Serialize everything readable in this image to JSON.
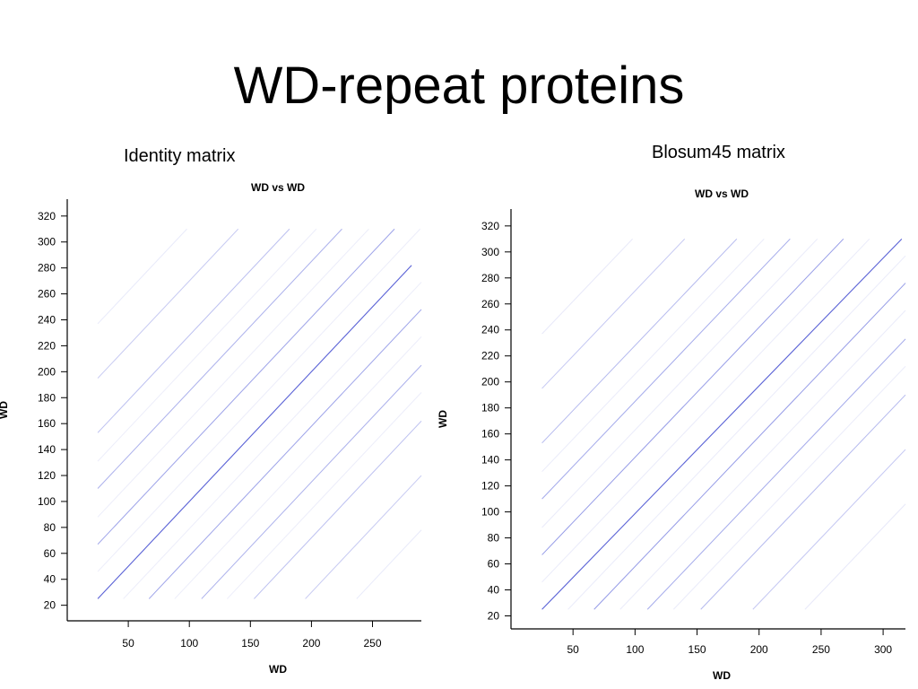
{
  "slide": {
    "title": "WD-repeat proteins",
    "captions": [
      "Identity matrix",
      "Blosum45 matrix"
    ]
  },
  "colors": {
    "main_diagonal": "#5a62d6",
    "repeat_diagonals": "#8f96e6",
    "noise": "#c9ccf2"
  },
  "chart_data": [
    {
      "type": "scatter",
      "title": "WD vs WD",
      "xlabel": "WD",
      "ylabel": "WD",
      "xlim": [
        0,
        290
      ],
      "ylim": [
        8,
        333
      ],
      "xticks": [
        50,
        100,
        150,
        200,
        250
      ],
      "yticks": [
        20,
        40,
        60,
        80,
        100,
        120,
        140,
        160,
        180,
        200,
        220,
        240,
        260,
        280,
        300,
        320
      ],
      "data_extent": {
        "x": [
          25,
          290
        ],
        "y": [
          25,
          310
        ]
      },
      "series": [
        {
          "role": "main",
          "x": [
            25,
            282
          ],
          "y": [
            25,
            282
          ],
          "intensity": 1.0
        },
        {
          "role": "off-diagonal",
          "offset": 42,
          "intensity": 0.45
        },
        {
          "role": "off-diagonal",
          "offset": -42,
          "intensity": 0.45
        },
        {
          "role": "off-diagonal",
          "offset": 85,
          "intensity": 0.35
        },
        {
          "role": "off-diagonal",
          "offset": -85,
          "intensity": 0.35
        },
        {
          "role": "off-diagonal",
          "offset": 128,
          "intensity": 0.25
        },
        {
          "role": "off-diagonal",
          "offset": -128,
          "intensity": 0.25
        },
        {
          "role": "off-diagonal",
          "offset": 170,
          "intensity": 0.18
        },
        {
          "role": "off-diagonal",
          "offset": -170,
          "intensity": 0.18
        },
        {
          "role": "off-diagonal",
          "offset": 212,
          "intensity": 0.12
        },
        {
          "role": "off-diagonal",
          "offset": -212,
          "intensity": 0.12
        },
        {
          "role": "off-diagonal",
          "offset": 21,
          "intensity": 0.08
        },
        {
          "role": "off-diagonal",
          "offset": -21,
          "intensity": 0.08
        },
        {
          "role": "off-diagonal",
          "offset": 63,
          "intensity": 0.08
        },
        {
          "role": "off-diagonal",
          "offset": -63,
          "intensity": 0.08
        },
        {
          "role": "off-diagonal",
          "offset": 106,
          "intensity": 0.08
        },
        {
          "role": "off-diagonal",
          "offset": -106,
          "intensity": 0.08
        }
      ]
    },
    {
      "type": "scatter",
      "title": "WD vs WD",
      "xlabel": "WD",
      "ylabel": "WD",
      "xlim": [
        0,
        318
      ],
      "ylim": [
        10,
        333
      ],
      "xticks": [
        50,
        100,
        150,
        200,
        250,
        300
      ],
      "yticks": [
        20,
        40,
        60,
        80,
        100,
        120,
        140,
        160,
        180,
        200,
        220,
        240,
        260,
        280,
        300,
        320
      ],
      "data_extent": {
        "x": [
          25,
          318
        ],
        "y": [
          25,
          310
        ]
      },
      "series": [
        {
          "role": "main",
          "x": [
            25,
            315
          ],
          "y": [
            25,
            310
          ],
          "intensity": 1.0
        },
        {
          "role": "off-diagonal",
          "offset": 42,
          "intensity": 0.5
        },
        {
          "role": "off-diagonal",
          "offset": -42,
          "intensity": 0.5
        },
        {
          "role": "off-diagonal",
          "offset": 85,
          "intensity": 0.4
        },
        {
          "role": "off-diagonal",
          "offset": -85,
          "intensity": 0.4
        },
        {
          "role": "off-diagonal",
          "offset": 128,
          "intensity": 0.3
        },
        {
          "role": "off-diagonal",
          "offset": -128,
          "intensity": 0.3
        },
        {
          "role": "off-diagonal",
          "offset": 170,
          "intensity": 0.2
        },
        {
          "role": "off-diagonal",
          "offset": -170,
          "intensity": 0.2
        },
        {
          "role": "off-diagonal",
          "offset": 212,
          "intensity": 0.14
        },
        {
          "role": "off-diagonal",
          "offset": -212,
          "intensity": 0.14
        },
        {
          "role": "off-diagonal",
          "offset": 21,
          "intensity": 0.1
        },
        {
          "role": "off-diagonal",
          "offset": -21,
          "intensity": 0.1
        },
        {
          "role": "off-diagonal",
          "offset": 63,
          "intensity": 0.1
        },
        {
          "role": "off-diagonal",
          "offset": -63,
          "intensity": 0.1
        },
        {
          "role": "off-diagonal",
          "offset": 106,
          "intensity": 0.1
        },
        {
          "role": "off-diagonal",
          "offset": -106,
          "intensity": 0.1
        }
      ]
    }
  ]
}
